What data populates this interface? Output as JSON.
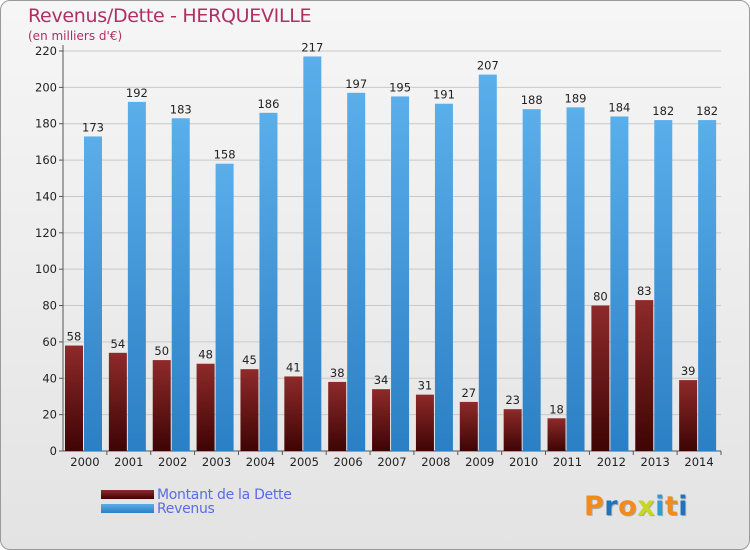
{
  "chart_data": {
    "type": "bar",
    "title": "Revenus/Dette - HERQUEVILLE",
    "subtitle": "(en milliers d'€)",
    "categories": [
      "2000",
      "2001",
      "2002",
      "2003",
      "2004",
      "2005",
      "2006",
      "2007",
      "2008",
      "2009",
      "2010",
      "2011",
      "2012",
      "2013",
      "2014"
    ],
    "series": [
      {
        "name": "Montant de la Dette",
        "color": "#8b1e1e",
        "values": [
          58,
          54,
          50,
          48,
          45,
          41,
          38,
          34,
          31,
          27,
          23,
          18,
          80,
          83,
          39
        ]
      },
      {
        "name": "Revenus",
        "color": "#4aa3e8",
        "values": [
          173,
          192,
          183,
          158,
          186,
          217,
          197,
          195,
          191,
          207,
          188,
          189,
          184,
          182,
          182
        ]
      }
    ],
    "ylim": [
      0,
      220
    ],
    "yticks": [
      0,
      20,
      40,
      60,
      80,
      100,
      120,
      140,
      160,
      180,
      200,
      220
    ],
    "grid": true,
    "legend_position": "bottom-left"
  },
  "logo": {
    "text": "Proxiti",
    "colors": [
      "#f28a1c",
      "#1e73be",
      "#f28a1c",
      "#c7d625",
      "#2a9fd6",
      "#f28a1c",
      "#1e73be"
    ]
  }
}
